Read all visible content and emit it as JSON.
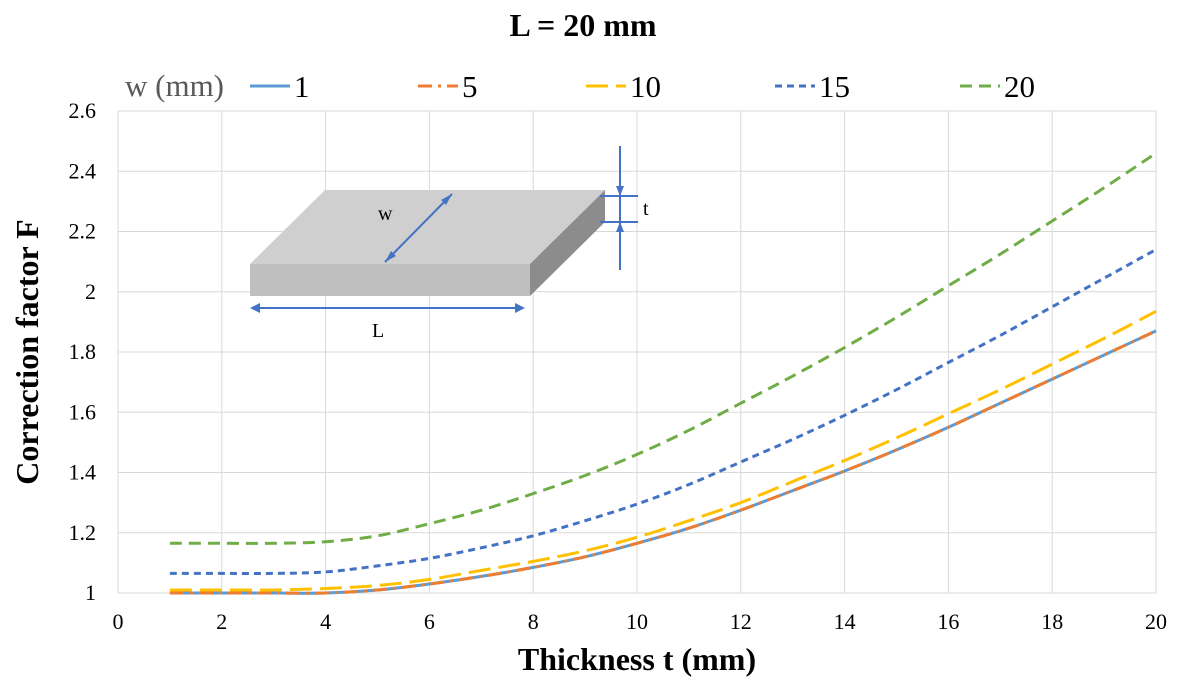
{
  "chart_data": {
    "type": "line",
    "title": "L = 20 mm",
    "xlabel": "Thickness t (mm)",
    "ylabel": "Correction factor F",
    "xlim": [
      0,
      20
    ],
    "ylim": [
      1,
      2.6
    ],
    "xticks": [
      0,
      2,
      4,
      6,
      8,
      10,
      12,
      14,
      16,
      18,
      20
    ],
    "yticks": [
      "1",
      "1.2",
      "1.4",
      "1.6",
      "1.8",
      "2",
      "2.2",
      "2.4",
      "2.6"
    ],
    "grid": true,
    "legend_title": "w (mm)",
    "legend_position": "top",
    "x": [
      1,
      2,
      3,
      4,
      5,
      6,
      7,
      8,
      9,
      10,
      11,
      12,
      13,
      14,
      15,
      16,
      17,
      18,
      19,
      20
    ],
    "series": [
      {
        "name": "1",
        "color": "#5b9bd5",
        "dash": "solid",
        "values": [
          1.0,
          1.0,
          1.0,
          1.0,
          1.01,
          1.03,
          1.055,
          1.085,
          1.12,
          1.165,
          1.215,
          1.275,
          1.34,
          1.405,
          1.475,
          1.55,
          1.63,
          1.71,
          1.79,
          1.87
        ]
      },
      {
        "name": "5",
        "color": "#ed7d31",
        "dash": "dashdot",
        "values": [
          1.0,
          1.0,
          1.0,
          1.0,
          1.01,
          1.03,
          1.055,
          1.085,
          1.12,
          1.165,
          1.215,
          1.275,
          1.34,
          1.405,
          1.475,
          1.55,
          1.63,
          1.71,
          1.79,
          1.87
        ]
      },
      {
        "name": "10",
        "color": "#ffc000",
        "dash": "longdash",
        "values": [
          1.01,
          1.01,
          1.01,
          1.015,
          1.025,
          1.045,
          1.075,
          1.105,
          1.14,
          1.185,
          1.24,
          1.3,
          1.37,
          1.44,
          1.515,
          1.595,
          1.675,
          1.76,
          1.845,
          1.935
        ]
      },
      {
        "name": "15",
        "color": "#4472c4",
        "dash": "shortdash",
        "values": [
          1.065,
          1.065,
          1.065,
          1.07,
          1.09,
          1.115,
          1.15,
          1.19,
          1.24,
          1.295,
          1.36,
          1.435,
          1.51,
          1.59,
          1.675,
          1.765,
          1.855,
          1.95,
          2.045,
          2.14
        ]
      },
      {
        "name": "20",
        "color": "#70ad47",
        "dash": "dashed",
        "values": [
          1.165,
          1.165,
          1.165,
          1.17,
          1.19,
          1.23,
          1.275,
          1.33,
          1.39,
          1.46,
          1.54,
          1.63,
          1.72,
          1.815,
          1.915,
          2.02,
          2.125,
          2.235,
          2.345,
          2.46
        ]
      }
    ]
  },
  "inset": {
    "w_label": "w",
    "t_label": "t",
    "L_label": "L"
  }
}
